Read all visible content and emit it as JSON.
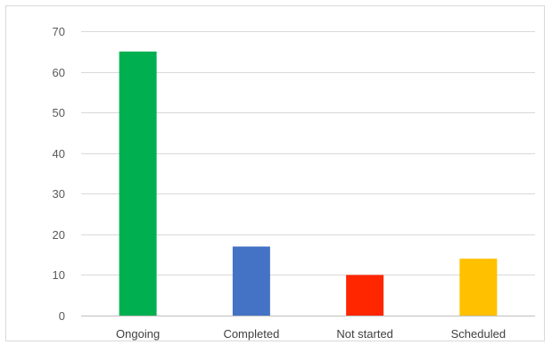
{
  "chart_data": {
    "type": "bar",
    "categories": [
      "Ongoing",
      "Completed",
      "Not started",
      "Scheduled"
    ],
    "values": [
      65,
      17,
      10,
      14
    ],
    "colors": [
      "#00b050",
      "#4472c4",
      "#ff2600",
      "#ffc000"
    ],
    "ylim": [
      0,
      70
    ],
    "yticks": [
      0,
      10,
      20,
      30,
      40,
      50,
      60,
      70
    ],
    "grid": true,
    "gridline_color": "#d9d9d9",
    "axis_color": "#bfbfbf"
  }
}
